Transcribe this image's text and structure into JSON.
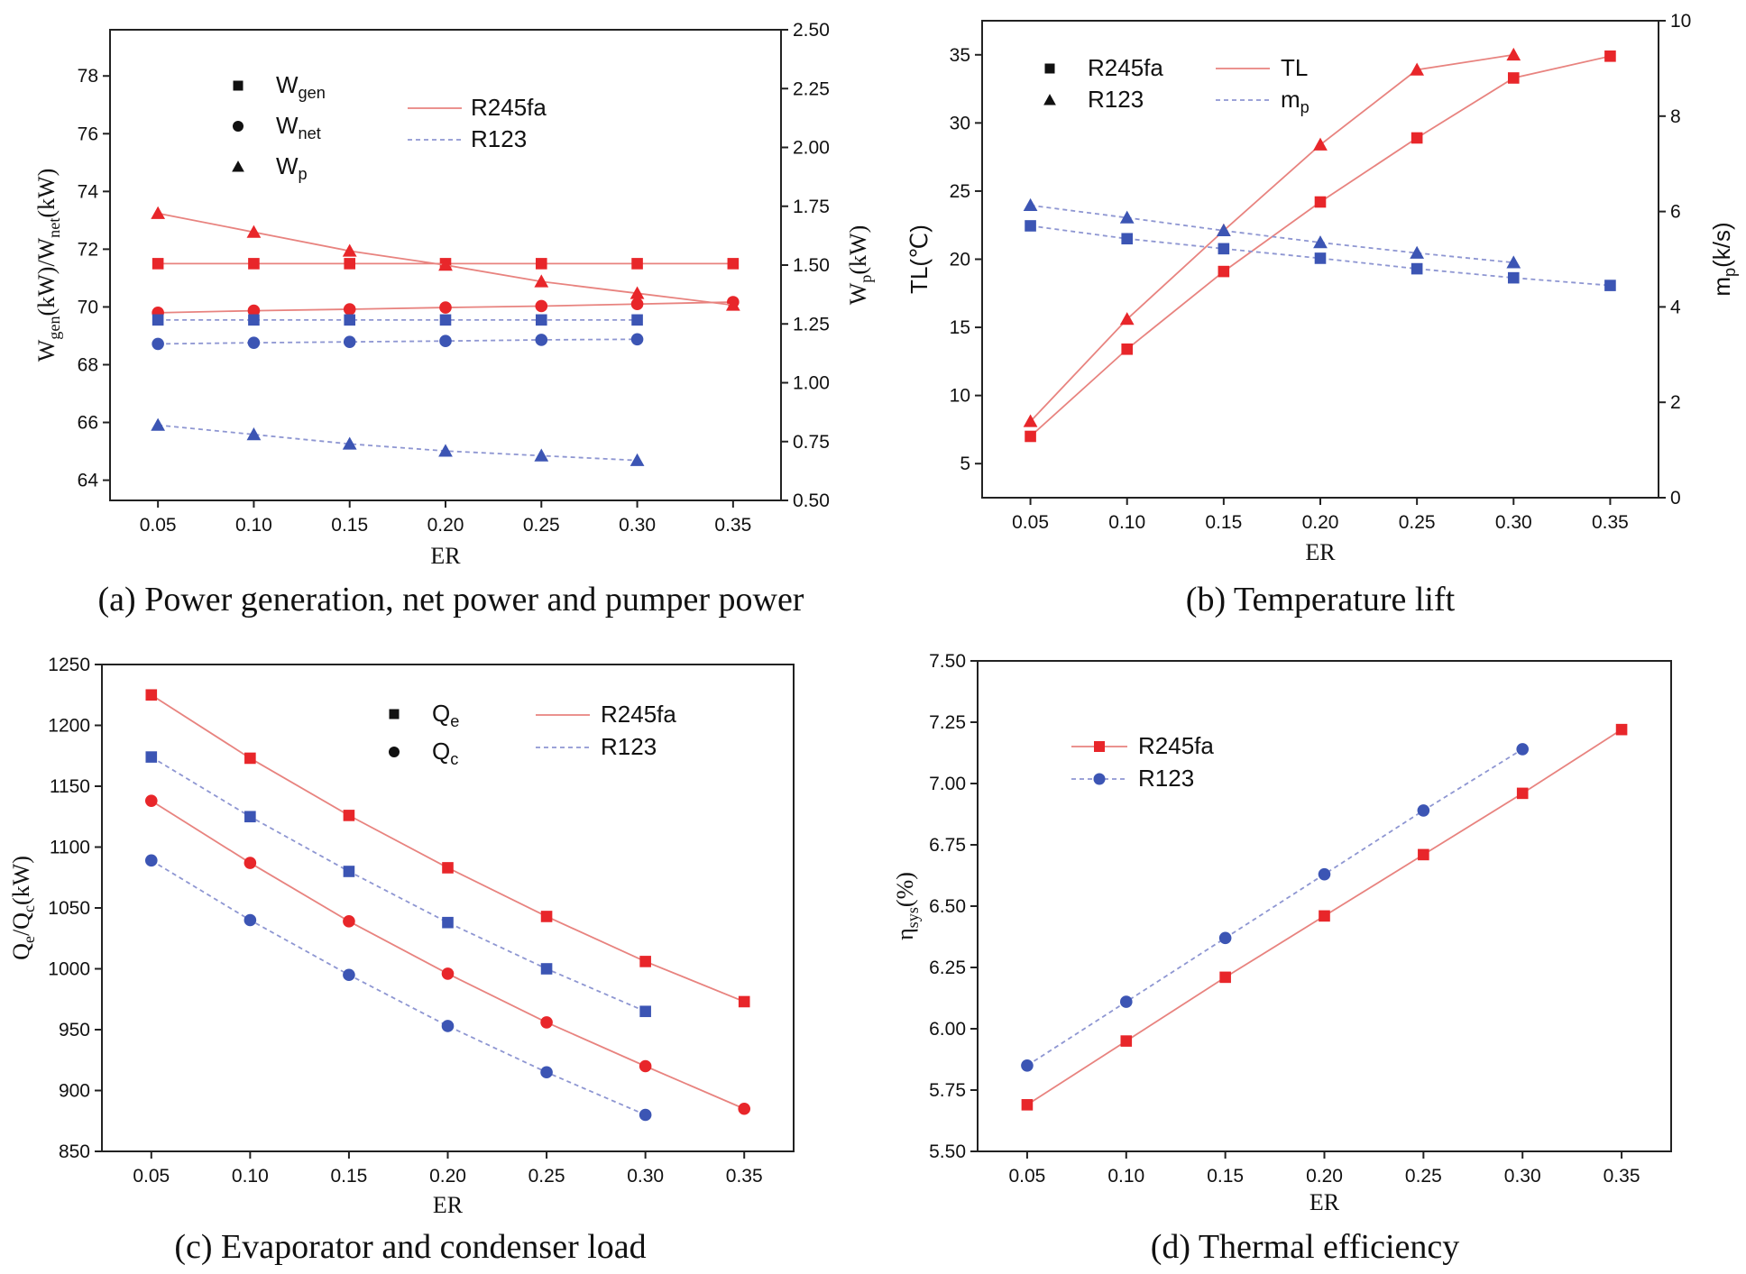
{
  "chart_data": [
    {
      "type": "line",
      "caption": "(a) Power generation, net power and pumper power",
      "xlabel": "ER",
      "ylabel_main": "W",
      "ylabel_sub1": "gen",
      "ylabel_mid": "(kW)/W",
      "ylabel_sub2": "net",
      "ylabel_end": "(kW)",
      "y2label_main": "W",
      "y2label_sub": "p",
      "y2label_end": "(kW)",
      "x_ticks": [
        "0.05",
        "0.10",
        "0.15",
        "0.20",
        "0.25",
        "0.30",
        "0.35"
      ],
      "y_ticks": [
        "64",
        "66",
        "68",
        "70",
        "72",
        "74",
        "76",
        "78"
      ],
      "y2_ticks": [
        "0.50",
        "0.75",
        "1.00",
        "1.25",
        "1.50",
        "1.75",
        "2.00",
        "2.25",
        "2.50"
      ],
      "xlim": [
        0.025,
        0.375
      ],
      "ylim": [
        63.3,
        79.6
      ],
      "y2lim": [
        0.5,
        2.5
      ],
      "legend_markers": [
        {
          "symbol": "square",
          "main": "W",
          "sub": "gen"
        },
        {
          "symbol": "circle",
          "main": "W",
          "sub": "net"
        },
        {
          "symbol": "triangle",
          "main": "W",
          "sub": "p"
        }
      ],
      "legend_lines": [
        {
          "label": "R245fa",
          "color": "#e05555",
          "dash": "solid"
        },
        {
          "label": "R123",
          "color": "#7a84cc",
          "dash": "dash"
        }
      ],
      "series": [
        {
          "name": "R245fa W_gen",
          "fluid": "R245fa",
          "symbol": "square",
          "axis": "left",
          "x": [
            0.05,
            0.1,
            0.15,
            0.2,
            0.25,
            0.3,
            0.35
          ],
          "y": [
            71.5,
            71.5,
            71.5,
            71.5,
            71.5,
            71.5,
            71.5
          ]
        },
        {
          "name": "R245fa W_net",
          "fluid": "R245fa",
          "symbol": "circle",
          "axis": "left",
          "x": [
            0.05,
            0.1,
            0.15,
            0.2,
            0.25,
            0.3,
            0.35
          ],
          "y": [
            69.8,
            69.87,
            69.92,
            69.98,
            70.03,
            70.1,
            70.17
          ]
        },
        {
          "name": "R245fa W_p",
          "fluid": "R245fa",
          "symbol": "triangle",
          "axis": "right",
          "x": [
            0.05,
            0.1,
            0.15,
            0.2,
            0.25,
            0.3,
            0.35
          ],
          "y": [
            1.72,
            1.64,
            1.56,
            1.5,
            1.43,
            1.38,
            1.33
          ]
        },
        {
          "name": "R123 W_gen",
          "fluid": "R123",
          "symbol": "square",
          "axis": "left",
          "x": [
            0.05,
            0.1,
            0.15,
            0.2,
            0.25,
            0.3
          ],
          "y": [
            69.55,
            69.55,
            69.55,
            69.55,
            69.55,
            69.55
          ]
        },
        {
          "name": "R123 W_net",
          "fluid": "R123",
          "symbol": "circle",
          "axis": "left",
          "x": [
            0.05,
            0.1,
            0.15,
            0.2,
            0.25,
            0.3
          ],
          "y": [
            68.72,
            68.76,
            68.79,
            68.82,
            68.86,
            68.88
          ]
        },
        {
          "name": "R123 W_p",
          "fluid": "R123",
          "symbol": "triangle",
          "axis": "right",
          "x": [
            0.05,
            0.1,
            0.15,
            0.2,
            0.25,
            0.3
          ],
          "y": [
            0.82,
            0.78,
            0.74,
            0.71,
            0.69,
            0.67
          ]
        }
      ]
    },
    {
      "type": "line",
      "caption": "(b) Temperature lift",
      "xlabel": "ER",
      "ylabel_main": "TL(℃)",
      "y2label_main": "m",
      "y2label_sub": "p",
      "y2label_end": "(k/s)",
      "x_ticks": [
        "0.05",
        "0.10",
        "0.15",
        "0.20",
        "0.25",
        "0.30",
        "0.35"
      ],
      "y_ticks": [
        "5",
        "10",
        "15",
        "20",
        "25",
        "30",
        "35"
      ],
      "y2_ticks": [
        "0",
        "2",
        "4",
        "6",
        "8",
        "10"
      ],
      "xlim": [
        0.025,
        0.375
      ],
      "ylim": [
        2.5,
        37.5
      ],
      "y2lim": [
        0,
        10
      ],
      "legend_markers": [
        {
          "symbol": "square",
          "main": "R245fa",
          "sub": ""
        },
        {
          "symbol": "triangle",
          "main": "R123",
          "sub": ""
        }
      ],
      "legend_lines": [
        {
          "label": "TL",
          "sub": "",
          "color": "#e05555",
          "dash": "solid"
        },
        {
          "label": "m",
          "sub": "p",
          "color": "#7a84cc",
          "dash": "dash"
        }
      ],
      "series": [
        {
          "name": "R245fa TL",
          "color_key": "TL",
          "symbol": "square",
          "axis": "left",
          "x": [
            0.05,
            0.1,
            0.15,
            0.2,
            0.25,
            0.3,
            0.35
          ],
          "y": [
            7.0,
            13.4,
            19.1,
            24.2,
            28.9,
            33.3,
            34.9
          ]
        },
        {
          "name": "R123 TL",
          "color_key": "TL",
          "symbol": "triangle",
          "axis": "left",
          "x": [
            0.05,
            0.1,
            0.15,
            0.2,
            0.25,
            0.3
          ],
          "y": [
            8.1,
            15.6,
            22.1,
            28.4,
            33.9,
            35.0
          ]
        },
        {
          "name": "R245fa m_p",
          "color_key": "mp",
          "symbol": "square",
          "axis": "right",
          "x": [
            0.05,
            0.1,
            0.15,
            0.2,
            0.25,
            0.3,
            0.35
          ],
          "y": [
            5.7,
            5.43,
            5.22,
            5.02,
            4.8,
            4.61,
            4.45
          ]
        },
        {
          "name": "R123 m_p",
          "color_key": "mp",
          "symbol": "triangle",
          "axis": "right",
          "x": [
            0.05,
            0.1,
            0.15,
            0.2,
            0.25,
            0.3
          ],
          "y": [
            6.13,
            5.87,
            5.6,
            5.35,
            5.13,
            4.93
          ]
        }
      ]
    },
    {
      "type": "line",
      "caption": "(c) Evaporator and condenser load",
      "xlabel": "ER",
      "ylabel_main": "Q",
      "ylabel_sub1": "e",
      "ylabel_mid": "/Q",
      "ylabel_sub2": "c",
      "ylabel_end": "(kW)",
      "x_ticks": [
        "0.05",
        "0.10",
        "0.15",
        "0.20",
        "0.25",
        "0.30",
        "0.35"
      ],
      "y_ticks": [
        "850",
        "900",
        "950",
        "1000",
        "1050",
        "1100",
        "1150",
        "1200",
        "1250"
      ],
      "xlim": [
        0.025,
        0.375
      ],
      "ylim": [
        850,
        1250
      ],
      "legend_markers": [
        {
          "symbol": "square",
          "main": "Q",
          "sub": "e"
        },
        {
          "symbol": "circle",
          "main": "Q",
          "sub": "c"
        }
      ],
      "legend_lines": [
        {
          "label": "R245fa",
          "color": "#e05555",
          "dash": "solid"
        },
        {
          "label": "R123",
          "color": "#7a84cc",
          "dash": "dash"
        }
      ],
      "series": [
        {
          "name": "R245fa Q_e",
          "fluid": "R245fa",
          "symbol": "square",
          "x": [
            0.05,
            0.1,
            0.15,
            0.2,
            0.25,
            0.3,
            0.35
          ],
          "y": [
            1225,
            1173,
            1126,
            1083,
            1043,
            1006,
            973
          ]
        },
        {
          "name": "R123 Q_e",
          "fluid": "R123",
          "symbol": "square",
          "x": [
            0.05,
            0.1,
            0.15,
            0.2,
            0.25,
            0.3
          ],
          "y": [
            1174,
            1125,
            1080,
            1038,
            1000,
            965
          ]
        },
        {
          "name": "R245fa Q_c",
          "fluid": "R245fa",
          "symbol": "circle",
          "x": [
            0.05,
            0.1,
            0.15,
            0.2,
            0.25,
            0.3,
            0.35
          ],
          "y": [
            1138,
            1087,
            1039,
            996,
            956,
            920,
            885
          ]
        },
        {
          "name": "R123 Q_c",
          "fluid": "R123",
          "symbol": "circle",
          "x": [
            0.05,
            0.1,
            0.15,
            0.2,
            0.25,
            0.3
          ],
          "y": [
            1089,
            1040,
            995,
            953,
            915,
            880
          ]
        }
      ]
    },
    {
      "type": "line",
      "caption": "(d) Thermal efficiency",
      "xlabel": "ER",
      "ylabel_main": "η",
      "ylabel_sub1": "sys",
      "ylabel_end": "(%)",
      "x_ticks": [
        "0.05",
        "0.10",
        "0.15",
        "0.20",
        "0.25",
        "0.30",
        "0.35"
      ],
      "y_ticks": [
        "5.50",
        "5.75",
        "6.00",
        "6.25",
        "6.50",
        "6.75",
        "7.00",
        "7.25",
        "7.50"
      ],
      "xlim": [
        0.025,
        0.375
      ],
      "ylim": [
        5.5,
        7.5
      ],
      "legend_series": [
        {
          "label": "R245fa",
          "symbol": "square",
          "color": "#e05555",
          "dash": "solid"
        },
        {
          "label": "R123",
          "symbol": "circle",
          "color": "#7a84cc",
          "dash": "dash"
        }
      ],
      "series": [
        {
          "name": "R245fa",
          "fluid": "R245fa",
          "symbol": "square",
          "x": [
            0.05,
            0.1,
            0.15,
            0.2,
            0.25,
            0.3,
            0.35
          ],
          "y": [
            5.69,
            5.95,
            6.21,
            6.46,
            6.71,
            6.96,
            7.22
          ]
        },
        {
          "name": "R123",
          "fluid": "R123",
          "symbol": "circle",
          "x": [
            0.05,
            0.1,
            0.15,
            0.2,
            0.25,
            0.3
          ],
          "y": [
            5.85,
            6.11,
            6.37,
            6.63,
            6.89,
            7.14
          ]
        }
      ]
    }
  ],
  "colors": {
    "line_red": "#e8837f",
    "line_blue": "#8e96d2",
    "marker_red": "#e8262a",
    "marker_blue": "#3c55b4"
  }
}
